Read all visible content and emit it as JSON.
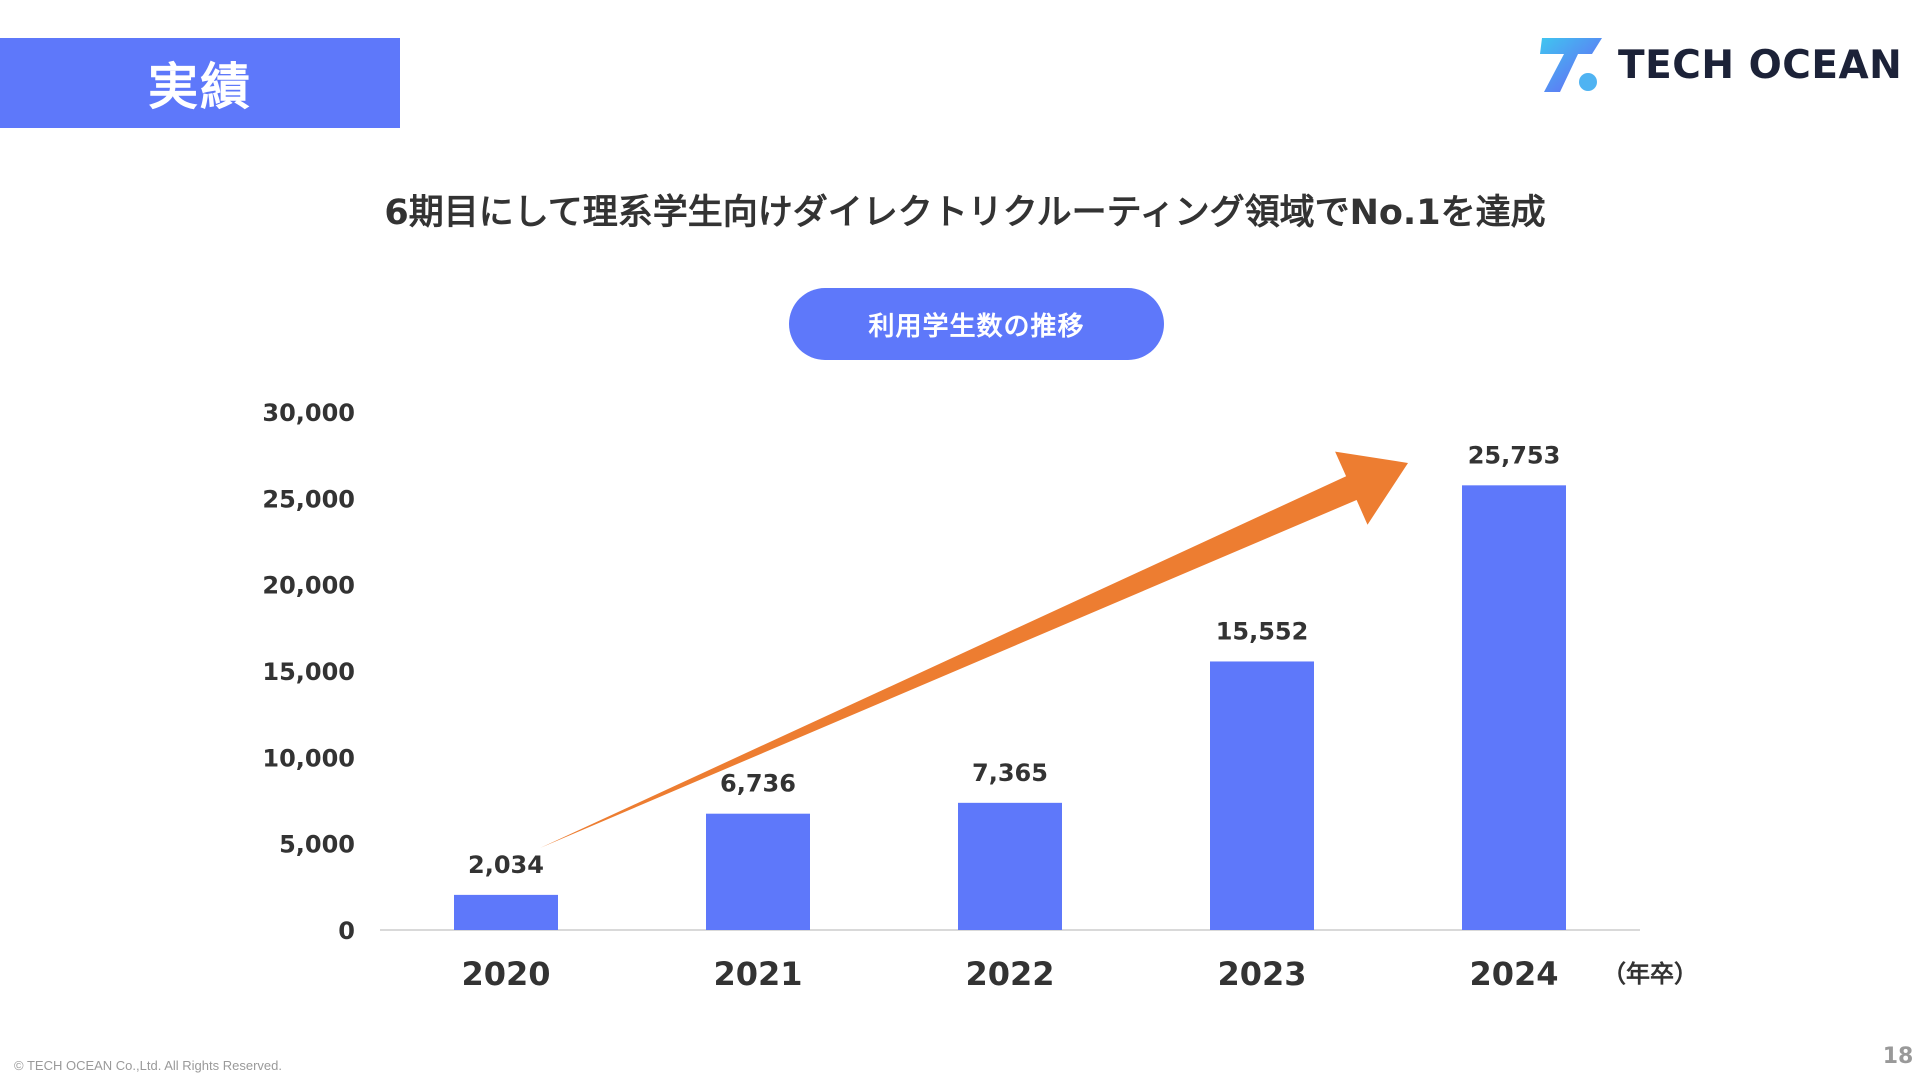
{
  "slide": {
    "section_title": "実績",
    "logo_text": "TECH OCEAN",
    "headline": "6期目にして理系学生向けダイレクトリクルーティング領域でNo.1を達成",
    "chart_label": "利用学生数の推移",
    "footer": "© TECH OCEAN Co.,Ltd. All Rights Reserved.",
    "page_number": "18"
  },
  "colors": {
    "accent": "#5E78FA",
    "arrow": "#ED7D31",
    "text": "#333333"
  },
  "chart_data": {
    "type": "bar",
    "categories": [
      "2020",
      "2021",
      "2022",
      "2023",
      "2024"
    ],
    "values": [
      2034,
      6736,
      7365,
      15552,
      25753
    ],
    "value_labels": [
      "2,034",
      "6,736",
      "7,365",
      "15,552",
      "25,753"
    ],
    "y_ticks": [
      0,
      5000,
      10000,
      15000,
      20000,
      25000,
      30000
    ],
    "y_tick_labels": [
      "0",
      "5,000",
      "10,000",
      "15,000",
      "20,000",
      "25,000",
      "30,000"
    ],
    "ylim": [
      0,
      30000
    ],
    "x_unit": "（年卒）",
    "grid": false,
    "annotation": "upward trend arrow"
  }
}
